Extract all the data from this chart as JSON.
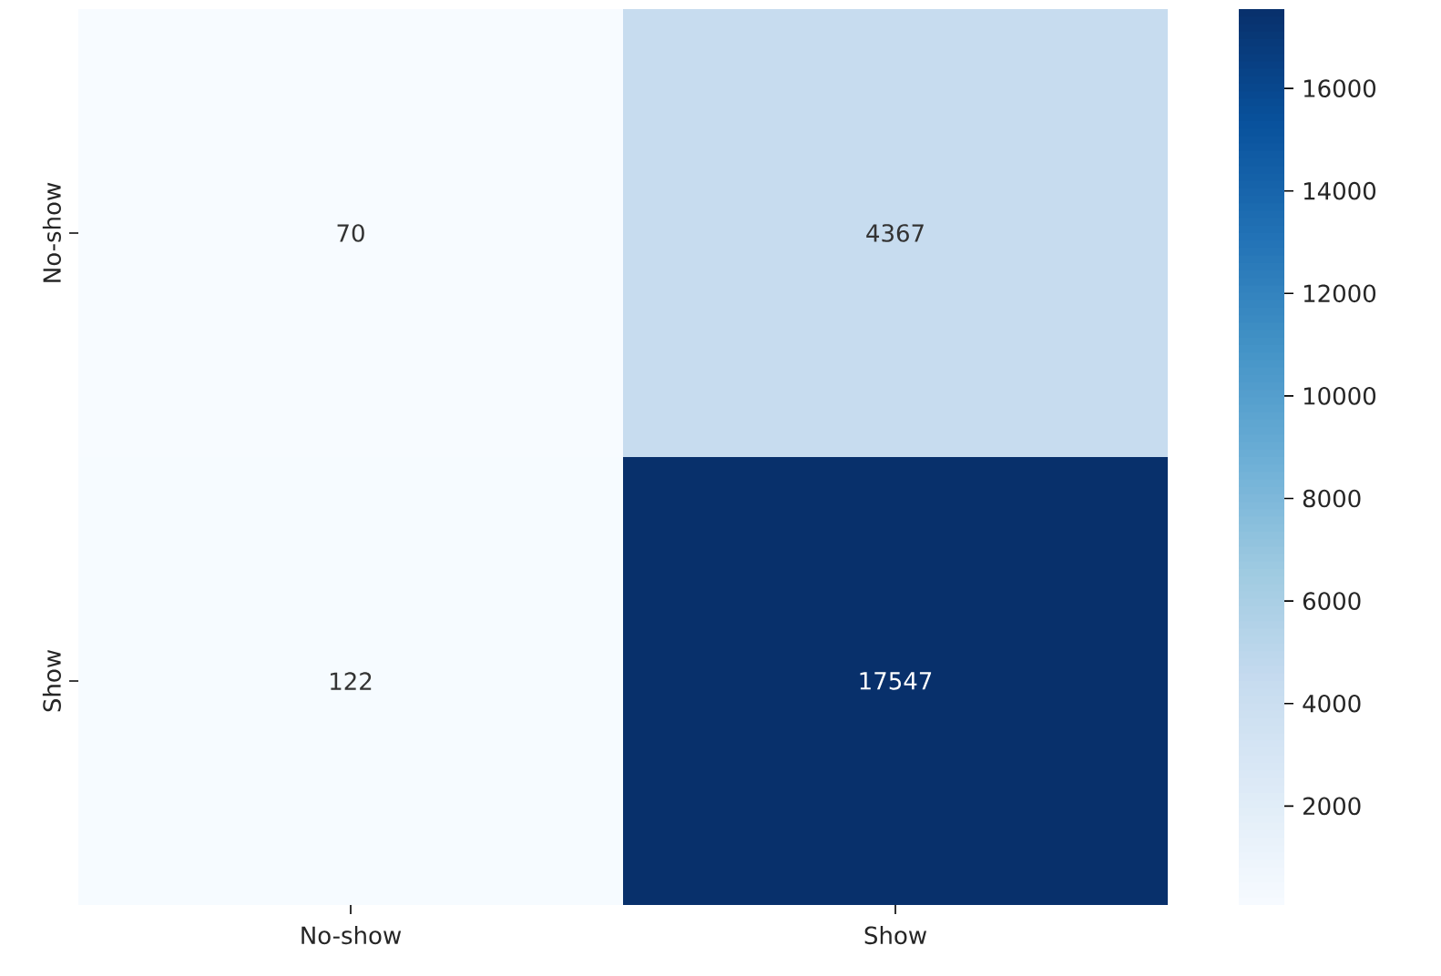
{
  "chart_data": {
    "type": "heatmap",
    "categories": [
      "No-show",
      "Show"
    ],
    "y_categories": [
      "No-show",
      "Show"
    ],
    "cells": [
      [
        70,
        4367
      ],
      [
        122,
        17547
      ]
    ],
    "clim": [
      70,
      17547
    ],
    "cticks": [
      2000,
      4000,
      6000,
      8000,
      10000,
      12000,
      14000,
      16000
    ],
    "data_labels": true
  }
}
